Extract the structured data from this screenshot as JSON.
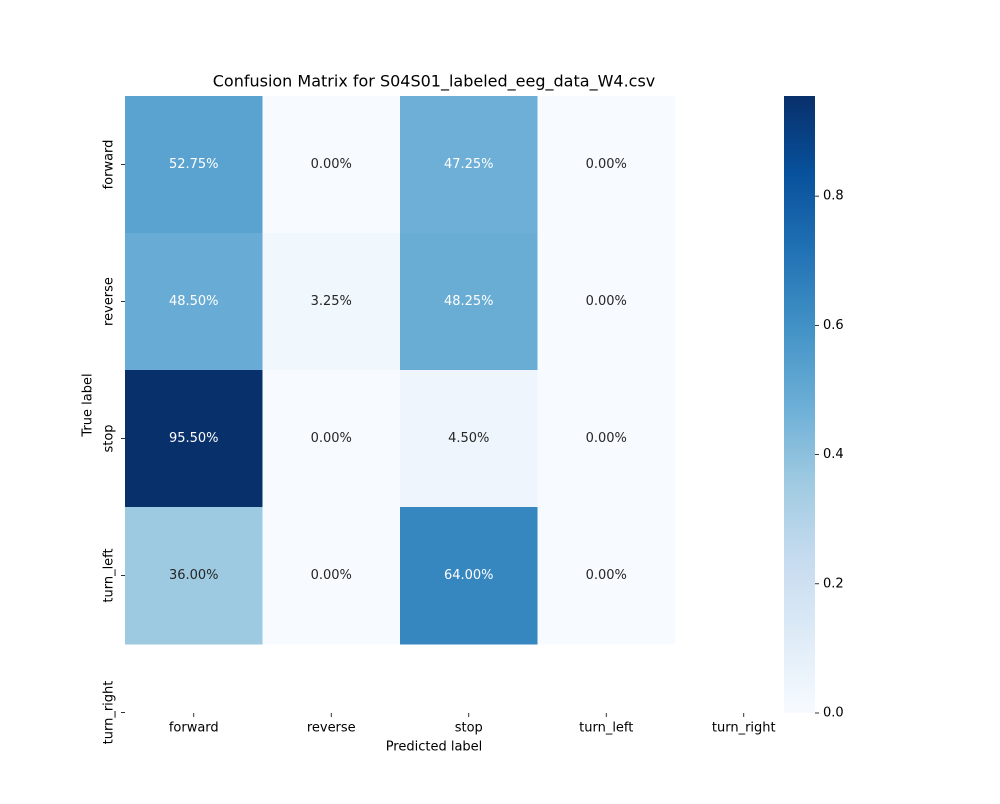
{
  "chart_data": {
    "type": "heatmap",
    "title": "Confusion Matrix for S04S01_labeled_eeg_data_W4.csv",
    "x_label": "Predicted label",
    "y_label": "True label",
    "x_categories": [
      "forward",
      "reverse",
      "stop",
      "turn_left",
      "turn_right"
    ],
    "y_categories": [
      "forward",
      "reverse",
      "stop",
      "turn_left",
      "turn_right"
    ],
    "values": [
      [
        0.5275,
        0,
        0.4725,
        0,
        null
      ],
      [
        0.485,
        0.0325,
        0.4825,
        0,
        null
      ],
      [
        0.955,
        0,
        0.045,
        0,
        null
      ],
      [
        0.36,
        0,
        0.64,
        0,
        null
      ],
      [
        null,
        null,
        null,
        null,
        null
      ]
    ],
    "value_labels": [
      [
        "52.75%",
        "0.00%",
        "47.25%",
        "0.00%",
        null
      ],
      [
        "48.50%",
        "3.25%",
        "48.25%",
        "0.00%",
        null
      ],
      [
        "95.50%",
        "0.00%",
        "4.50%",
        "0.00%",
        null
      ],
      [
        "36.00%",
        "0.00%",
        "64.00%",
        "0.00%",
        null
      ],
      [
        null,
        null,
        null,
        null,
        null
      ]
    ],
    "colormap": "Blues",
    "colorbar_lim": [
      0,
      0.955
    ],
    "colorbar_ticks": [
      {
        "value": 0,
        "label": "0.0"
      },
      0.2,
      0.4,
      0.6,
      0.8
    ]
  }
}
